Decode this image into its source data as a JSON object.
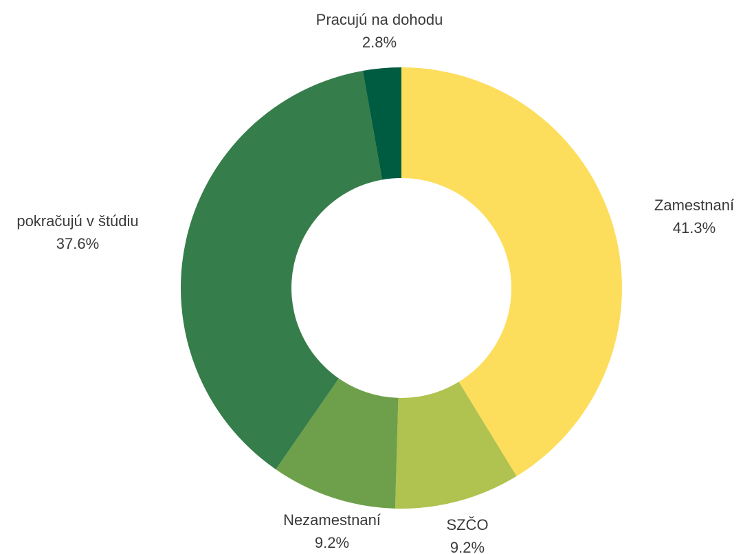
{
  "chart_data": {
    "type": "donut",
    "categories": [
      "Zamestnaní",
      "SZČO",
      "Nezamestnaní",
      "pokračujú v štúdiu",
      "Pracujú na dohodu"
    ],
    "values": [
      41.3,
      9.2,
      9.2,
      37.6,
      2.8
    ],
    "value_labels": [
      "41.3%",
      "9.2%",
      "9.2%",
      "37.6%",
      "2.8%"
    ],
    "colors": [
      "#fddd5c",
      "#b0c24f",
      "#6ea04b",
      "#357d4a",
      "#005c40"
    ]
  }
}
